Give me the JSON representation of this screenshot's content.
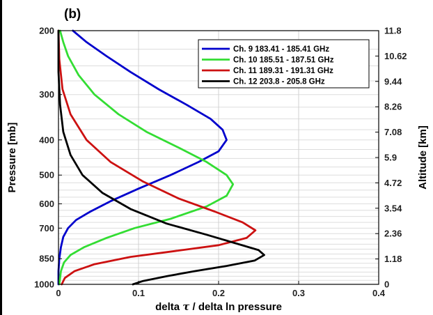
{
  "chart_data": {
    "type": "line",
    "panel_label": "(b)",
    "xlabel_parts": [
      "delta ",
      "τ",
      " / delta ln pressure"
    ],
    "ylabel": "Pressure [mb]",
    "y2label": "Altitude [km]",
    "xlim": [
      0,
      0.4
    ],
    "xticks": [
      "0",
      "0.1",
      "0.2",
      "0.3",
      "0.4"
    ],
    "ylim": [
      1000,
      200
    ],
    "yscale": "log",
    "yticks": [
      "200",
      "300",
      "400",
      "500",
      "600",
      "700",
      "850",
      "1000"
    ],
    "y2ticks": [
      "11.8",
      "10.62",
      "9.44",
      "8.26",
      "7.08",
      "5.9",
      "4.72",
      "3.54",
      "2.36",
      "1.18",
      "0"
    ],
    "grid": true,
    "legend_position": "top-right",
    "series": [
      {
        "name": "Ch. 9 183.41 - 185.41 GHz",
        "color": "#0000cc",
        "points": [
          [
            0.018,
            200
          ],
          [
            0.035,
            215
          ],
          [
            0.06,
            235
          ],
          [
            0.09,
            260
          ],
          [
            0.125,
            290
          ],
          [
            0.16,
            320
          ],
          [
            0.19,
            350
          ],
          [
            0.205,
            375
          ],
          [
            0.21,
            400
          ],
          [
            0.2,
            430
          ],
          [
            0.175,
            460
          ],
          [
            0.14,
            500
          ],
          [
            0.1,
            545
          ],
          [
            0.065,
            590
          ],
          [
            0.04,
            630
          ],
          [
            0.022,
            665
          ],
          [
            0.012,
            700
          ],
          [
            0.006,
            740
          ],
          [
            0.003,
            790
          ],
          [
            0.001,
            850
          ],
          [
            0.0,
            920
          ],
          [
            0.0,
            1000
          ]
        ]
      },
      {
        "name": "Ch. 10 185.51 - 187.51 GHz",
        "color": "#33dd33",
        "points": [
          [
            0.002,
            200
          ],
          [
            0.006,
            215
          ],
          [
            0.012,
            235
          ],
          [
            0.025,
            265
          ],
          [
            0.045,
            300
          ],
          [
            0.075,
            340
          ],
          [
            0.11,
            380
          ],
          [
            0.15,
            420
          ],
          [
            0.185,
            460
          ],
          [
            0.21,
            500
          ],
          [
            0.218,
            530
          ],
          [
            0.21,
            570
          ],
          [
            0.185,
            610
          ],
          [
            0.14,
            660
          ],
          [
            0.095,
            700
          ],
          [
            0.06,
            745
          ],
          [
            0.032,
            790
          ],
          [
            0.015,
            830
          ],
          [
            0.007,
            870
          ],
          [
            0.003,
            920
          ],
          [
            0.001,
            1000
          ]
        ]
      },
      {
        "name": "Ch. 11 189.31 - 191.31 GHz",
        "color": "#cc1111",
        "points": [
          [
            0.0,
            200
          ],
          [
            0.001,
            240
          ],
          [
            0.005,
            290
          ],
          [
            0.015,
            340
          ],
          [
            0.035,
            400
          ],
          [
            0.065,
            460
          ],
          [
            0.105,
            520
          ],
          [
            0.15,
            580
          ],
          [
            0.195,
            630
          ],
          [
            0.23,
            675
          ],
          [
            0.246,
            710
          ],
          [
            0.235,
            745
          ],
          [
            0.2,
            780
          ],
          [
            0.145,
            810
          ],
          [
            0.09,
            840
          ],
          [
            0.045,
            880
          ],
          [
            0.02,
            920
          ],
          [
            0.008,
            960
          ],
          [
            0.004,
            1000
          ]
        ]
      },
      {
        "name": "Ch. 12 203.8 - 205.8 GHz",
        "color": "#000000",
        "points": [
          [
            0.0,
            200
          ],
          [
            0.0,
            260
          ],
          [
            0.002,
            320
          ],
          [
            0.006,
            380
          ],
          [
            0.015,
            440
          ],
          [
            0.03,
            500
          ],
          [
            0.055,
            560
          ],
          [
            0.09,
            620
          ],
          [
            0.135,
            680
          ],
          [
            0.185,
            730
          ],
          [
            0.225,
            775
          ],
          [
            0.25,
            805
          ],
          [
            0.257,
            830
          ],
          [
            0.245,
            860
          ],
          [
            0.21,
            890
          ],
          [
            0.17,
            920
          ],
          [
            0.135,
            950
          ],
          [
            0.105,
            980
          ],
          [
            0.093,
            1000
          ]
        ]
      }
    ]
  }
}
